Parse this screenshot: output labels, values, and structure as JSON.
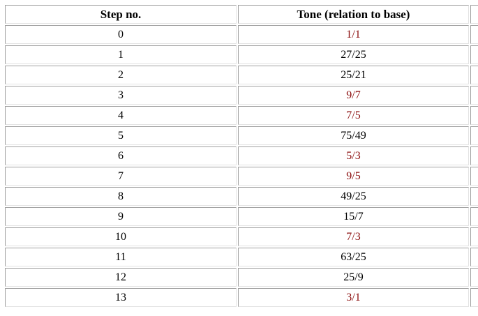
{
  "columns": {
    "step": "Step no.",
    "tone": "Tone (relation to base)"
  },
  "colors": {
    "highlight": "#8b0d0d",
    "normal": "#000000"
  },
  "rows": [
    {
      "step": "0",
      "tone": "1/1",
      "highlight": true
    },
    {
      "step": "1",
      "tone": "27/25",
      "highlight": false
    },
    {
      "step": "2",
      "tone": "25/21",
      "highlight": false
    },
    {
      "step": "3",
      "tone": "9/7",
      "highlight": true
    },
    {
      "step": "4",
      "tone": "7/5",
      "highlight": true
    },
    {
      "step": "5",
      "tone": "75/49",
      "highlight": false
    },
    {
      "step": "6",
      "tone": "5/3",
      "highlight": true
    },
    {
      "step": "7",
      "tone": "9/5",
      "highlight": true
    },
    {
      "step": "8",
      "tone": "49/25",
      "highlight": false
    },
    {
      "step": "9",
      "tone": "15/7",
      "highlight": false
    },
    {
      "step": "10",
      "tone": "7/3",
      "highlight": true
    },
    {
      "step": "11",
      "tone": "63/25",
      "highlight": false
    },
    {
      "step": "12",
      "tone": "25/9",
      "highlight": false
    },
    {
      "step": "13",
      "tone": "3/1",
      "highlight": true
    }
  ]
}
